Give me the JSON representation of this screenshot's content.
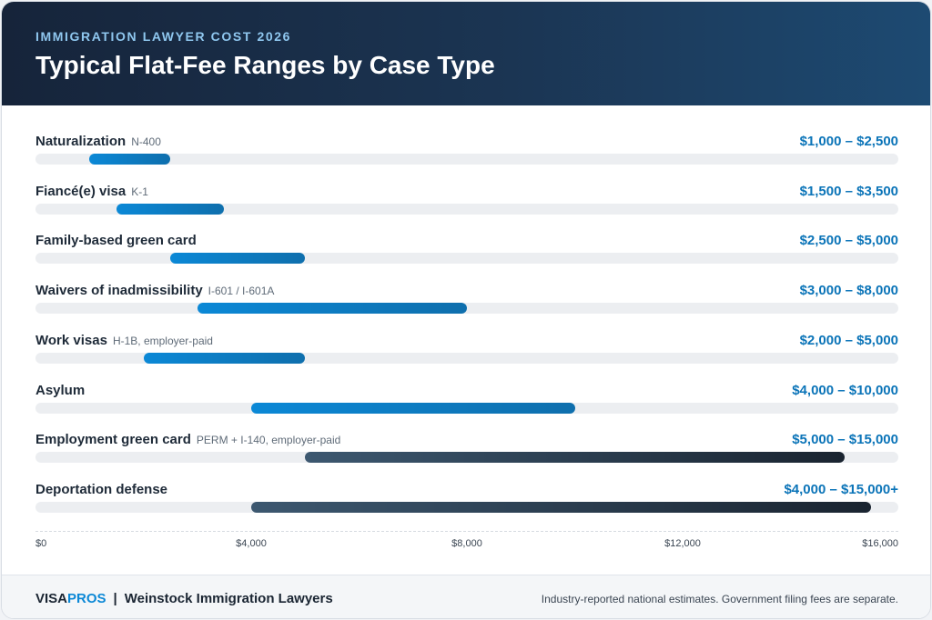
{
  "header": {
    "eyebrow": "IMMIGRATION LAWYER COST 2026",
    "title": "Typical Flat-Fee Ranges by Case Type"
  },
  "chart_data": {
    "type": "bar",
    "subtype": "range",
    "orientation": "horizontal",
    "xlim": [
      0,
      16000
    ],
    "x_ticks": [
      "$0",
      "$4,000",
      "$8,000",
      "$12,000",
      "$16,000"
    ],
    "x_tick_values": [
      0,
      4000,
      8000,
      12000,
      16000
    ],
    "colors": {
      "standard": "#0b88d6",
      "employer": "#1f2c3a"
    },
    "rows": [
      {
        "label": "Naturalization",
        "sublabel": "N-400",
        "range_text": "$1,000 – $2,500",
        "low": 1000,
        "high": 2500,
        "style": "blue"
      },
      {
        "label": "Fiancé(e) visa",
        "sublabel": "K-1",
        "range_text": "$1,500 – $3,500",
        "low": 1500,
        "high": 3500,
        "style": "blue"
      },
      {
        "label": "Family-based green card",
        "sublabel": "",
        "range_text": "$2,500 – $5,000",
        "low": 2500,
        "high": 5000,
        "style": "blue"
      },
      {
        "label": "Waivers of inadmissibility",
        "sublabel": "I-601 / I-601A",
        "range_text": "$3,000 – $8,000",
        "low": 3000,
        "high": 8000,
        "style": "blue"
      },
      {
        "label": "Work visas",
        "sublabel": "H-1B, employer-paid",
        "range_text": "$2,000 – $5,000",
        "low": 2000,
        "high": 5000,
        "style": "blue"
      },
      {
        "label": "Asylum",
        "sublabel": "",
        "range_text": "$4,000 – $10,000",
        "low": 4000,
        "high": 10000,
        "style": "blue"
      },
      {
        "label": "Employment green card",
        "sublabel": "PERM + I-140, employer-paid",
        "range_text": "$5,000 – $15,000",
        "low": 5000,
        "high": 15000,
        "style": "dark"
      },
      {
        "label": "Deportation defense",
        "sublabel": "",
        "range_text": "$4,000 – $15,000+",
        "low": 4000,
        "high": 15500,
        "style": "dark"
      }
    ]
  },
  "footer": {
    "brand_visa": "VISA",
    "brand_pros": "PROS",
    "separator": "|",
    "firm": "Weinstock Immigration Lawyers",
    "note": "Industry-reported national estimates. Government filing fees are separate."
  }
}
